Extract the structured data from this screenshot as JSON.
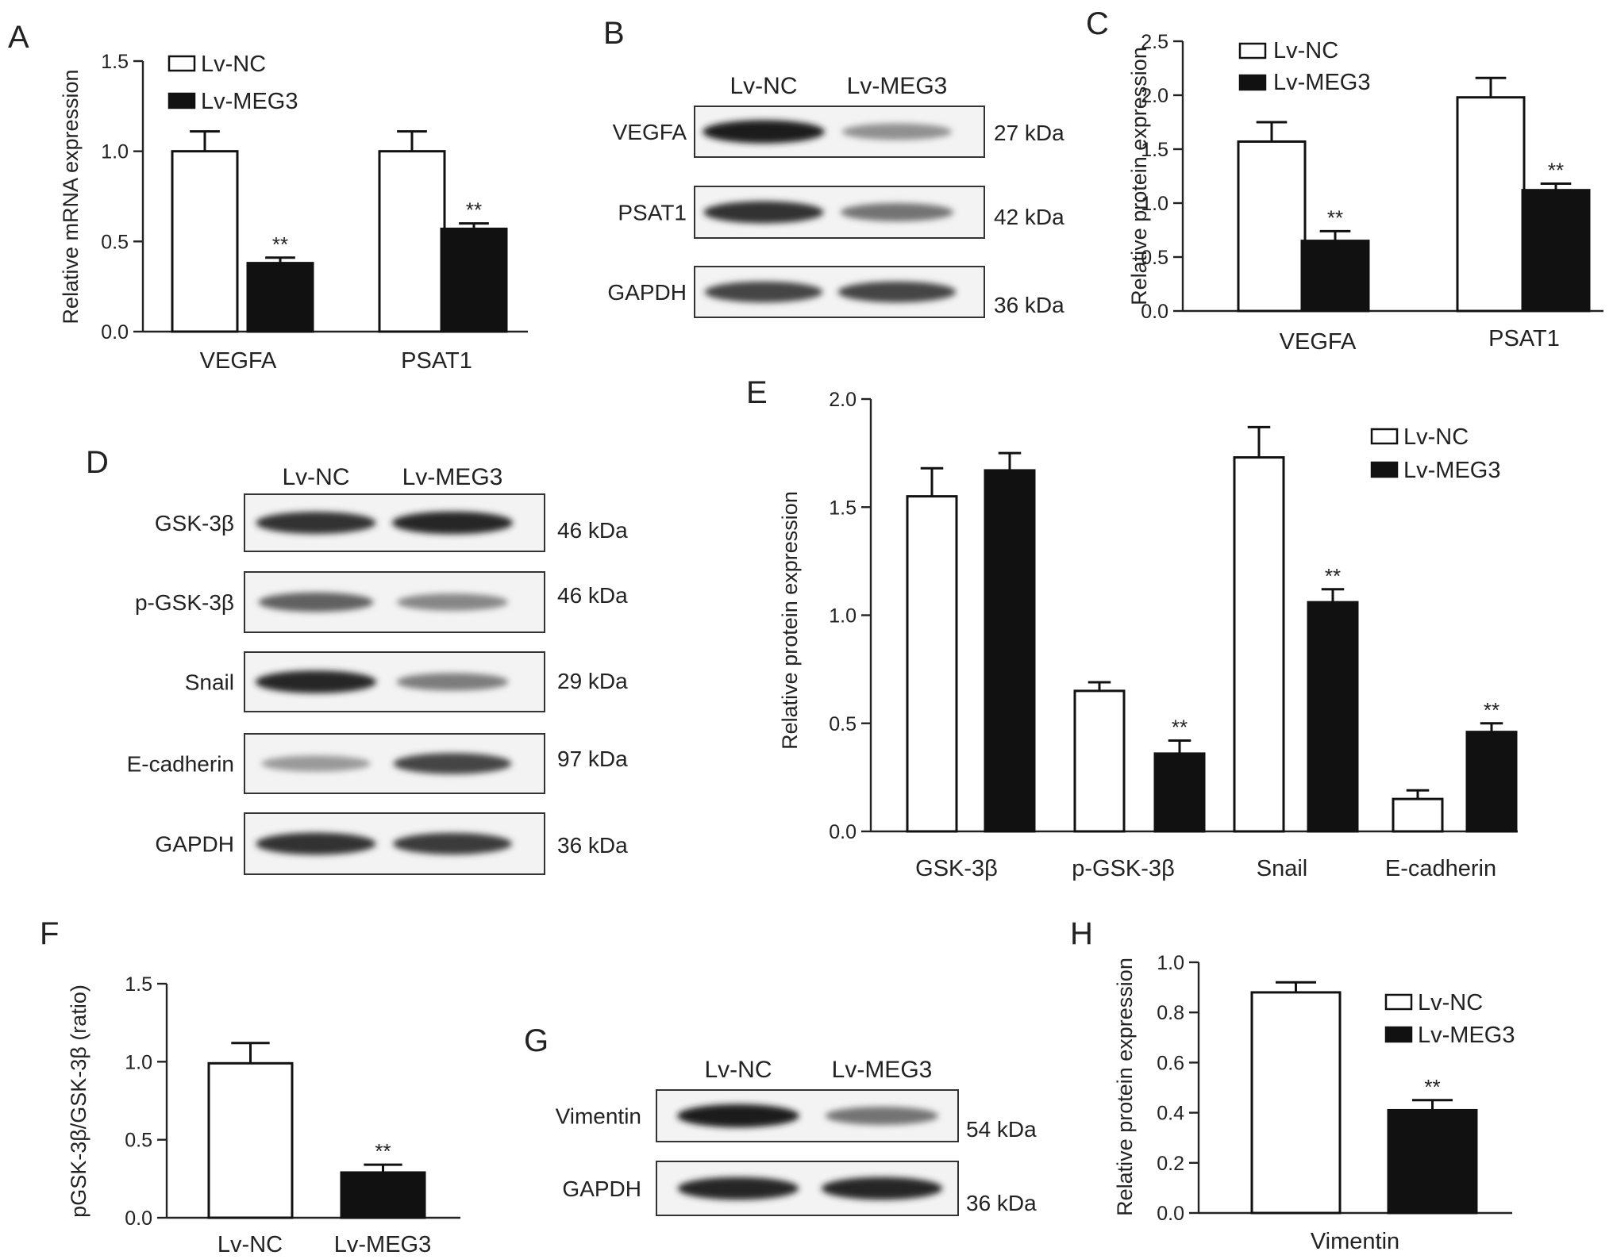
{
  "panels": {
    "A": {
      "letter": "A"
    },
    "B": {
      "letter": "B"
    },
    "C": {
      "letter": "C"
    },
    "D": {
      "letter": "D"
    },
    "E": {
      "letter": "E"
    },
    "F": {
      "letter": "F"
    },
    "G": {
      "letter": "G"
    },
    "H": {
      "letter": "H"
    }
  },
  "legend": {
    "nc": "Lv-NC",
    "meg3": "Lv-MEG3"
  },
  "colors": {
    "nc_fill": "#ffffff",
    "meg3_fill": "#111111",
    "outline": "#111111"
  },
  "blots": {
    "B": {
      "lanes": [
        "Lv-NC",
        "Lv-MEG3"
      ],
      "rows": [
        {
          "label": "VEGFA",
          "kda": "27 kDa",
          "nc": 0.95,
          "meg3": 0.35
        },
        {
          "label": "PSAT1",
          "kda": "42 kDa",
          "nc": 0.85,
          "meg3": 0.5
        },
        {
          "label": "GAPDH",
          "kda": "36 kDa",
          "nc": 0.75,
          "meg3": 0.75
        }
      ]
    },
    "D": {
      "lanes": [
        "Lv-NC",
        "Lv-MEG3"
      ],
      "rows": [
        {
          "label": "GSK-3β",
          "kda": "46 kDa",
          "nc": 0.85,
          "meg3": 0.9
        },
        {
          "label": "p-GSK-3β",
          "kda": "46 kDa",
          "nc": 0.6,
          "meg3": 0.4
        },
        {
          "label": "Snail",
          "kda": "29 kDa",
          "nc": 0.9,
          "meg3": 0.45
        },
        {
          "label": "E-cadherin",
          "kda": "97 kDa",
          "nc": 0.3,
          "meg3": 0.75
        },
        {
          "label": "GAPDH",
          "kda": "36 kDa",
          "nc": 0.85,
          "meg3": 0.8
        }
      ]
    },
    "G": {
      "lanes": [
        "Lv-NC",
        "Lv-MEG3"
      ],
      "rows": [
        {
          "label": "Vimentin",
          "kda": "54 kDa",
          "nc": 0.95,
          "meg3": 0.5
        },
        {
          "label": "GAPDH",
          "kda": "36 kDa",
          "nc": 0.9,
          "meg3": 0.9
        }
      ]
    }
  },
  "chart_data": [
    {
      "panel": "A",
      "type": "bar",
      "ylabel": "Relative mRNA expression",
      "ylim": [
        0,
        1.5
      ],
      "yticks": [
        "0.0",
        "0.5",
        "1.0",
        "1.5"
      ],
      "categories": [
        "VEGFA",
        "PSAT1"
      ],
      "series": [
        {
          "name": "Lv-NC",
          "values": [
            1.0,
            1.0
          ],
          "errors": [
            0.11,
            0.11
          ]
        },
        {
          "name": "Lv-MEG3",
          "values": [
            0.38,
            0.57
          ],
          "errors": [
            0.03,
            0.03
          ]
        }
      ],
      "significance": [
        "**",
        "**"
      ],
      "legend": "top-left"
    },
    {
      "panel": "C",
      "type": "bar",
      "ylabel": "Relative protein expression",
      "ylim": [
        0,
        2.5
      ],
      "yticks": [
        "0.0",
        "0.5",
        "1.0",
        "1.5",
        "2.0",
        "2.5"
      ],
      "categories": [
        "VEGFA",
        "PSAT1"
      ],
      "series": [
        {
          "name": "Lv-NC",
          "values": [
            1.57,
            1.98
          ],
          "errors": [
            0.18,
            0.18
          ]
        },
        {
          "name": "Lv-MEG3",
          "values": [
            0.65,
            1.12
          ],
          "errors": [
            0.09,
            0.06
          ]
        }
      ],
      "significance": [
        "**",
        "**"
      ],
      "legend": "top-left"
    },
    {
      "panel": "E",
      "type": "bar",
      "ylabel": "Relative protein expression",
      "ylim": [
        0,
        2.0
      ],
      "yticks": [
        "0.0",
        "0.5",
        "1.0",
        "1.5",
        "2.0"
      ],
      "categories": [
        "GSK-3β",
        "p-GSK-3β",
        "Snail",
        "E-cadherin"
      ],
      "series": [
        {
          "name": "Lv-NC",
          "values": [
            1.55,
            0.65,
            1.73,
            0.15
          ],
          "errors": [
            0.13,
            0.04,
            0.14,
            0.04
          ]
        },
        {
          "name": "Lv-MEG3",
          "values": [
            1.67,
            0.36,
            1.06,
            0.46
          ],
          "errors": [
            0.08,
            0.06,
            0.06,
            0.04
          ]
        }
      ],
      "significance": [
        "",
        "**",
        "**",
        "**"
      ],
      "legend": "top-right"
    },
    {
      "panel": "F",
      "type": "bar",
      "ylabel": "pGSK-3β/GSK-3β (ratio)",
      "ylim": [
        0,
        1.5
      ],
      "yticks": [
        "0.0",
        "0.5",
        "1.0",
        "1.5"
      ],
      "categories": [
        "Lv-NC",
        "Lv-MEG3"
      ],
      "values": [
        0.99,
        0.29
      ],
      "errors": [
        0.13,
        0.05
      ],
      "significance": [
        "",
        "**"
      ]
    },
    {
      "panel": "H",
      "type": "bar",
      "ylabel": "Relative protein expression",
      "ylim": [
        0,
        1.0
      ],
      "yticks": [
        "0.0",
        "0.2",
        "0.4",
        "0.6",
        "0.8",
        "1.0"
      ],
      "categories": [
        "Vimentin"
      ],
      "series": [
        {
          "name": "Lv-NC",
          "values": [
            0.88
          ],
          "errors": [
            0.04
          ]
        },
        {
          "name": "Lv-MEG3",
          "values": [
            0.41
          ],
          "errors": [
            0.04
          ]
        }
      ],
      "significance": [
        "**"
      ],
      "legend": "top-right"
    }
  ]
}
